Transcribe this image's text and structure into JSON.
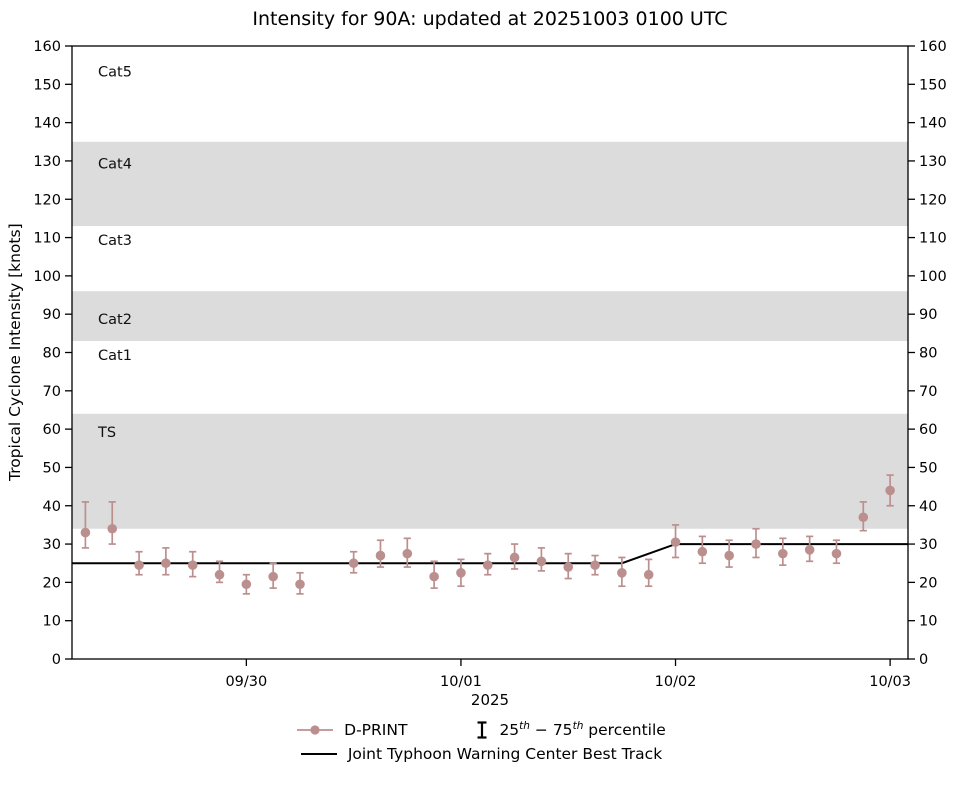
{
  "title": "Intensity for 90A: updated at 20251003 0100 UTC",
  "ylabel": "Tropical Cyclone Intensity [knots]",
  "xlabel": "2025",
  "legend": {
    "dprint_label": "D-PRINT",
    "percentile_25": "25",
    "percentile_sup1": "th",
    "percentile_mid": " − 75",
    "percentile_sup2": "th",
    "percentile_rest": " percentile",
    "best_track_label": "Joint Typhoon Warning Center Best Track"
  },
  "chart_data": {
    "type": "line",
    "title": "Intensity for 90A: updated at 20251003 0100 UTC",
    "xlabel": "2025",
    "ylabel": "Tropical Cyclone Intensity [knots]",
    "ylim": [
      0,
      160
    ],
    "ytick_step": 10,
    "x_units": "hours since 2025-09-29 00:00 UTC",
    "xlim": [
      4.5,
      98
    ],
    "xticks": [
      {
        "h": 24,
        "label": "09/30"
      },
      {
        "h": 48,
        "label": "10/01"
      },
      {
        "h": 72,
        "label": "10/02"
      },
      {
        "h": 96,
        "label": "10/03"
      }
    ],
    "colors": {
      "marker": "#bc8f8f",
      "best_track": "#000000",
      "band": "#dcdcdc"
    },
    "bands": [
      {
        "label": "TS",
        "y0": 34,
        "y1": 64
      },
      {
        "label": "Cat2",
        "y0": 83,
        "y1": 96
      },
      {
        "label": "Cat4",
        "y0": 113,
        "y1": 135
      }
    ],
    "category_labels": [
      {
        "label": "Cat5",
        "y": 152
      },
      {
        "label": "Cat4",
        "y": 128
      },
      {
        "label": "Cat3",
        "y": 108
      },
      {
        "label": "Cat2",
        "y": 87.5
      },
      {
        "label": "Cat1",
        "y": 78
      },
      {
        "label": "TS",
        "y": 58
      }
    ],
    "best_track_knots": [
      [
        4.5,
        25
      ],
      [
        66,
        25
      ],
      [
        72,
        30
      ],
      [
        98,
        30
      ]
    ],
    "series_units": "knots",
    "dprint_points": [
      {
        "h": 6,
        "v": 33,
        "lo": 29,
        "hi": 41
      },
      {
        "h": 9,
        "v": 34,
        "lo": 30,
        "hi": 41
      },
      {
        "h": 12,
        "v": 24.5,
        "lo": 22,
        "hi": 28
      },
      {
        "h": 15,
        "v": 25,
        "lo": 22,
        "hi": 29
      },
      {
        "h": 18,
        "v": 24.5,
        "lo": 21.5,
        "hi": 28
      },
      {
        "h": 21,
        "v": 22,
        "lo": 20,
        "hi": 25.5
      },
      {
        "h": 24,
        "v": 19.5,
        "lo": 17,
        "hi": 22
      },
      {
        "h": 27,
        "v": 21.5,
        "lo": 18.5,
        "hi": 25
      },
      {
        "h": 30,
        "v": 19.5,
        "lo": 17,
        "hi": 22.5
      },
      {
        "h": 36,
        "v": 25,
        "lo": 22.5,
        "hi": 28
      },
      {
        "h": 39,
        "v": 27,
        "lo": 24,
        "hi": 31
      },
      {
        "h": 42,
        "v": 27.5,
        "lo": 24,
        "hi": 31.5
      },
      {
        "h": 45,
        "v": 21.5,
        "lo": 18.5,
        "hi": 25.5
      },
      {
        "h": 48,
        "v": 22.5,
        "lo": 19,
        "hi": 26
      },
      {
        "h": 51,
        "v": 24.5,
        "lo": 22,
        "hi": 27.5
      },
      {
        "h": 54,
        "v": 26.5,
        "lo": 23.5,
        "hi": 30
      },
      {
        "h": 57,
        "v": 25.5,
        "lo": 23,
        "hi": 29
      },
      {
        "h": 60,
        "v": 24,
        "lo": 21,
        "hi": 27.5
      },
      {
        "h": 63,
        "v": 24.5,
        "lo": 22,
        "hi": 27
      },
      {
        "h": 66,
        "v": 22.5,
        "lo": 19,
        "hi": 26.5
      },
      {
        "h": 69,
        "v": 22,
        "lo": 19,
        "hi": 26
      },
      {
        "h": 72,
        "v": 30.5,
        "lo": 26.5,
        "hi": 35
      },
      {
        "h": 75,
        "v": 28,
        "lo": 25,
        "hi": 32
      },
      {
        "h": 78,
        "v": 27,
        "lo": 24,
        "hi": 31
      },
      {
        "h": 81,
        "v": 30,
        "lo": 26.5,
        "hi": 34
      },
      {
        "h": 84,
        "v": 27.5,
        "lo": 24.5,
        "hi": 31.5
      },
      {
        "h": 87,
        "v": 28.5,
        "lo": 25.5,
        "hi": 32
      },
      {
        "h": 90,
        "v": 27.5,
        "lo": 25,
        "hi": 31
      },
      {
        "h": 93,
        "v": 37,
        "lo": 33.5,
        "hi": 41
      },
      {
        "h": 96,
        "v": 44,
        "lo": 40,
        "hi": 48
      }
    ]
  }
}
